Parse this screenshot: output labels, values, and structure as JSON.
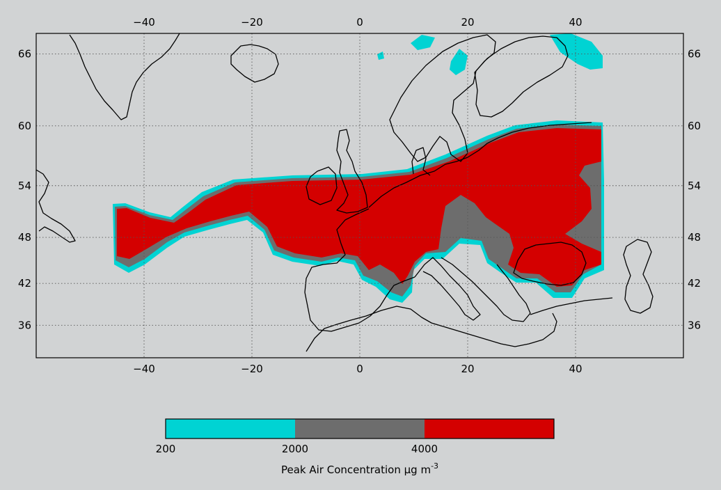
{
  "map": {
    "lon_ticks": [
      -40,
      -20,
      0,
      20,
      40
    ],
    "lat_ticks": [
      36,
      42,
      48,
      54,
      60,
      66
    ],
    "lon_tick_labels": [
      "−40",
      "−20",
      "0",
      "20",
      "40"
    ],
    "lat_tick_labels": [
      "36",
      "42",
      "48",
      "54",
      "60",
      "66"
    ],
    "lon_range": [
      -60,
      60
    ],
    "lat_range": [
      31,
      67.5
    ],
    "grid": true
  },
  "colorbar": {
    "levels": [
      {
        "from": 200,
        "to": 2000,
        "color": "#00d3d3"
      },
      {
        "from": 2000,
        "to": 4000,
        "color": "#6d6d6d"
      },
      {
        "from": 4000,
        "to": null,
        "color": "#d40000"
      }
    ],
    "tick_labels": [
      "200",
      "2000",
      "4000"
    ],
    "title_main": "Peak Air Concentration ",
    "title_unit_mu": "μ",
    "title_unit": "g m",
    "title_exp": "-3"
  },
  "colors": {
    "low": "#00d3d3",
    "mid": "#6d6d6d",
    "high": "#d40000",
    "background": "#d1d3d4",
    "coast": "#000000"
  }
}
